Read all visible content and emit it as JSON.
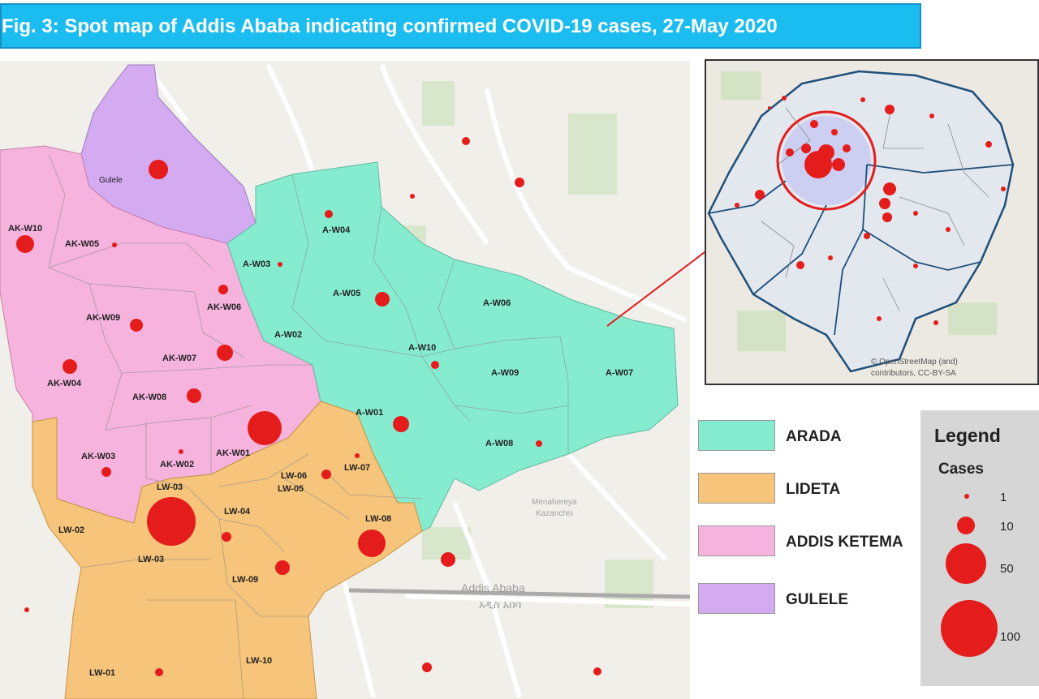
{
  "title": "Fig. 3: Spot map of Addis Ababa indicating confirmed COVID-19 cases, 27-May 2020",
  "colors": {
    "arada": "#86ecd0",
    "lideta": "#f6c47a",
    "addis_ketema": "#f5b3dd",
    "gulele": "#d4aaf0",
    "case_dot": "#e51c1c",
    "banner": "#1bbcf0",
    "legend_bg": "#d6d6d6"
  },
  "districts": [
    {
      "name": "ARADA",
      "color_key": "arada"
    },
    {
      "name": "LIDETA",
      "color_key": "lideta"
    },
    {
      "name": "ADDIS KETEMA",
      "color_key": "addis_ketema"
    },
    {
      "name": "GULELE",
      "color_key": "gulele"
    }
  ],
  "ward_labels": {
    "gulele": "Gulele",
    "ak_w10": "AK-W10",
    "ak_w05": "AK-W05",
    "ak_w06": "AK-W06",
    "ak_w09": "AK-W09",
    "ak_w07": "AK-W07",
    "ak_w04": "AK-W04",
    "ak_w08": "AK-W08",
    "ak_w03": "AK-W03",
    "ak_w02": "AK-W02",
    "ak_w01": "AK-W01",
    "a_w04": "A-W04",
    "a_w03": "A-W03",
    "a_w05": "A-W05",
    "a_w06": "A-W06",
    "a_w02": "A-W02",
    "a_w10": "A-W10",
    "a_w09": "A-W09",
    "a_w07": "A-W07",
    "a_w01": "A-W01",
    "a_w08": "A-W08",
    "lw_03a": "LW-03",
    "lw_03b": "LW-03",
    "lw_02": "LW-02",
    "lw_04": "LW-04",
    "lw_06": "LW-06",
    "lw_05": "LW-05",
    "lw_07": "LW-07",
    "lw_08": "LW-08",
    "lw_09": "LW-09",
    "lw_01": "LW-01",
    "lw_10": "LW-10"
  },
  "basemap_labels": {
    "addis_ababa": "Addis Ababa",
    "addis_ababa_amharic": "አዲስ አበባ",
    "mercato": "Menahereya",
    "kazanchis": "Kazanchis"
  },
  "inset": {
    "attribution_line1": "© OpenStreetMap (and)",
    "attribution_line2": "contributors, CC-BY-SA"
  },
  "legend": {
    "title": "Legend",
    "subtitle": "Cases",
    "sizes": [
      {
        "label": "1",
        "cases": 1
      },
      {
        "label": "10",
        "cases": 10
      },
      {
        "label": "50",
        "cases": 50
      },
      {
        "label": "100",
        "cases": 100
      }
    ]
  }
}
